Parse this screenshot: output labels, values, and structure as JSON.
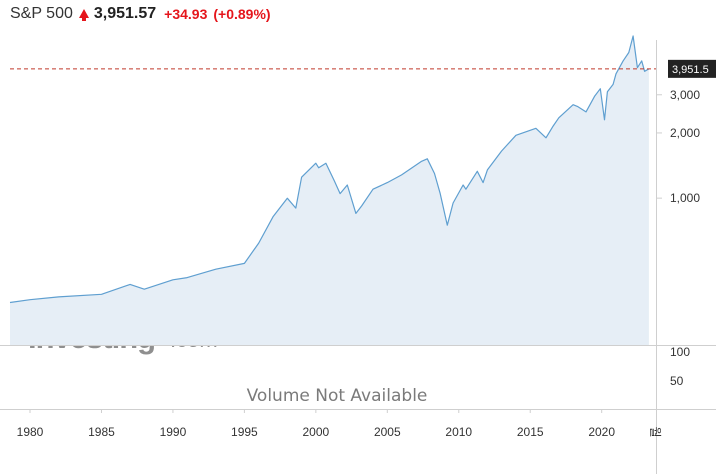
{
  "header": {
    "symbol": "S&P 500",
    "price": "3,951.57",
    "change": "+34.93",
    "change_pct": "(+0.89%)",
    "direction": "up",
    "up_color": "#e5161c"
  },
  "watermark": {
    "brand": "Investing",
    "suffix": ".com"
  },
  "volume": {
    "message": "Volume Not Available",
    "ticks": [
      "100",
      "50"
    ]
  },
  "last_price_label": "3,951.5",
  "colors": {
    "line": "#5f9fd0",
    "fill": "#e6eef6",
    "reference": "#c0392b",
    "badge": "#222222"
  },
  "chart_data": {
    "type": "area",
    "title": "S&P 500",
    "xlabel": "",
    "ylabel": "",
    "y_scale": "log",
    "x_tick_labels": [
      "1980",
      "1985",
      "1990",
      "1995",
      "2000",
      "2005",
      "2010",
      "2015",
      "2020",
      "월"
    ],
    "y_tick_labels": [
      "3,000",
      "2,000",
      "1,000"
    ],
    "y_ticks": [
      3000,
      2000,
      1000
    ],
    "ylim": [
      210,
      6100
    ],
    "xlim": [
      1978.6,
      2023.8
    ],
    "reference_line": 3951.57,
    "legend": "none",
    "series": [
      {
        "x": [
          1978.6,
          1980,
          1982,
          1985,
          1987,
          1988,
          1990,
          1991,
          1993,
          1995,
          1996,
          1997,
          1998,
          1998.6,
          1999,
          2000,
          2000.2,
          2000.7,
          2001.3,
          2001.7,
          2002.2,
          2002.8,
          2003.2,
          2004,
          2005,
          2006,
          2007.4,
          2007.8,
          2008.3,
          2008.7,
          2009.2,
          2009.6,
          2010.3,
          2010.5,
          2011.3,
          2011.7,
          2012,
          2013,
          2014,
          2015.4,
          2016.1,
          2016.6,
          2017,
          2018,
          2018.3,
          2018.9,
          2019.5,
          2019.9,
          2020.2,
          2020.4,
          2020.8,
          2021,
          2021.5,
          2021.9,
          2022.2,
          2022.5,
          2022.8,
          2023,
          2023.3
        ],
        "y": [
          330,
          340,
          350,
          360,
          400,
          380,
          420,
          430,
          470,
          500,
          620,
          820,
          1000,
          900,
          1250,
          1450,
          1380,
          1450,
          1200,
          1050,
          1150,
          850,
          920,
          1100,
          1180,
          1280,
          1480,
          1520,
          1300,
          1050,
          750,
          950,
          1150,
          1100,
          1330,
          1180,
          1350,
          1650,
          1950,
          2100,
          1900,
          2150,
          2350,
          2700,
          2650,
          2500,
          2950,
          3200,
          2300,
          3100,
          3350,
          3750,
          4300,
          4700,
          5600,
          4000,
          4300,
          3850,
          3950
        ]
      }
    ]
  }
}
